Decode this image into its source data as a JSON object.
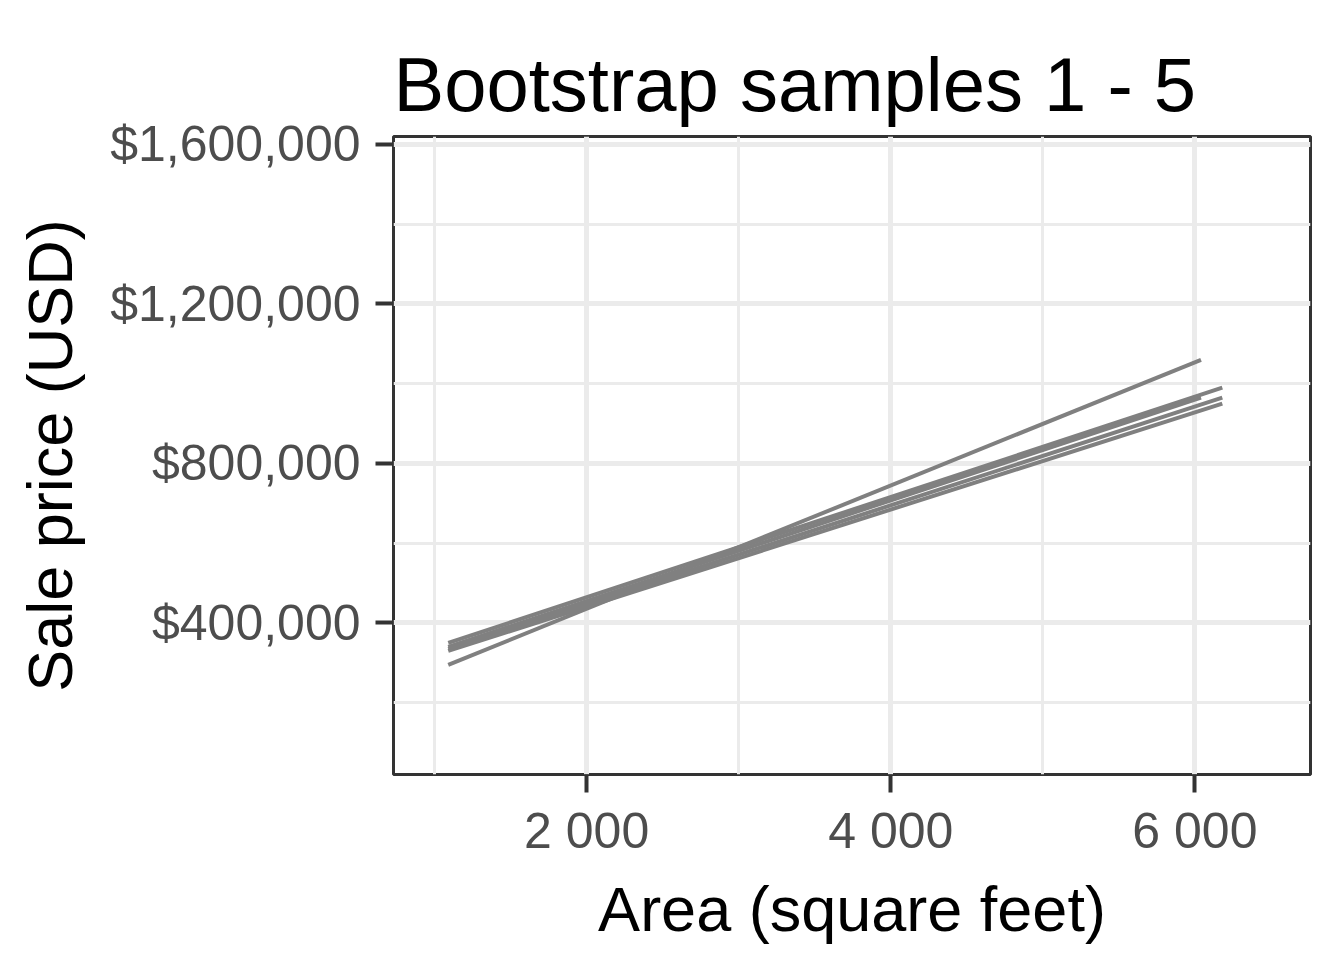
{
  "chart_data": {
    "type": "line",
    "title": "Bootstrap samples 1 - 5",
    "xlabel": "Area (square feet)",
    "ylabel": "Sale price (USD)",
    "xlim": [
      730,
      6760
    ],
    "ylim": [
      20000,
      1620000
    ],
    "xticks": [
      {
        "value": 2000,
        "label": "2 000"
      },
      {
        "value": 4000,
        "label": "4 000"
      },
      {
        "value": 6000,
        "label": "6 000"
      }
    ],
    "yticks": [
      {
        "value": 400000,
        "label": "$400,000"
      },
      {
        "value": 800000,
        "label": "$800,000"
      },
      {
        "value": 1200000,
        "label": "$1,200,000"
      },
      {
        "value": 1600000,
        "label": "$1,600,000"
      }
    ],
    "grid": true,
    "series": [
      {
        "color": "#808080",
        "x": [
          1090,
          6040
        ],
        "values": [
          295000,
          1060000
        ]
      },
      {
        "color": "#808080",
        "x": [
          1090,
          6180
        ],
        "values": [
          350000,
          990000
        ]
      },
      {
        "color": "#808080",
        "x": [
          1090,
          6040
        ],
        "values": [
          340000,
          965000
        ]
      },
      {
        "color": "#808080",
        "x": [
          1090,
          6180
        ],
        "values": [
          335000,
          965000
        ]
      },
      {
        "color": "#808080",
        "x": [
          1090,
          6180
        ],
        "values": [
          330000,
          950000
        ]
      }
    ]
  }
}
